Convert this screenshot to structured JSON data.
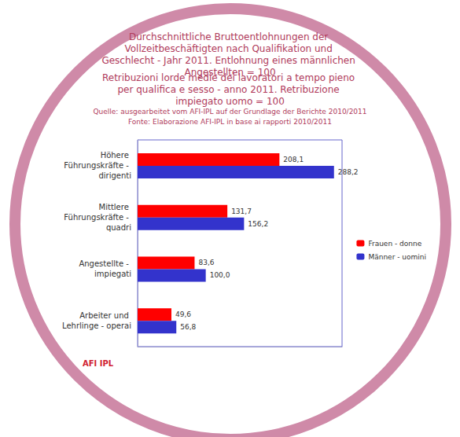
{
  "chart_data": {
    "type": "bar",
    "title": "Durchschnittliche Bruttoentlohnungen der Vollzeitbeschäftigten nach Qualifikation und Geschlecht - Jahr 2011. Entlohnung eines männlichen Angestellten = 100",
    "subtitle": "Retribuzioni lorde medie dei lavoratori a tempo pieno per qualifica e sesso - anno 2011. Retribuzione impiegato uomo = 100",
    "annotations": [
      "Quelle: ausgearbeitet vom AFI-IPL auf der Grundlage der Berichte 2010/2011",
      "Fonte: Elaborazione AFI-IPL in base ai rapporti 2010/2011",
      "AFI IPL"
    ],
    "orientation": "horizontal",
    "categories": [
      "Höhere Führungskräfte - dirigenti",
      "Mittlere Führungskräfte - quadri",
      "Angestellte - impiegati",
      "Arbeiter und Lehrlinge - operai"
    ],
    "series": [
      {
        "name": "Frauen - donne",
        "color": "#ff0000",
        "values": [
          208.1,
          131.7,
          83.6,
          49.6
        ],
        "value_labels": [
          "208,1",
          "131,7",
          "83,6",
          "49,6"
        ]
      },
      {
        "name": "Männer - uomini",
        "color": "#3333cc",
        "values": [
          288.2,
          156.2,
          100,
          56.8
        ],
        "value_labels": [
          "288,2",
          "156,2",
          "100,0",
          "56,8"
        ]
      }
    ],
    "xlim": [
      0,
      300
    ],
    "grid": false,
    "legend": "right",
    "data_labels": true,
    "tick_labels": "y"
  }
}
